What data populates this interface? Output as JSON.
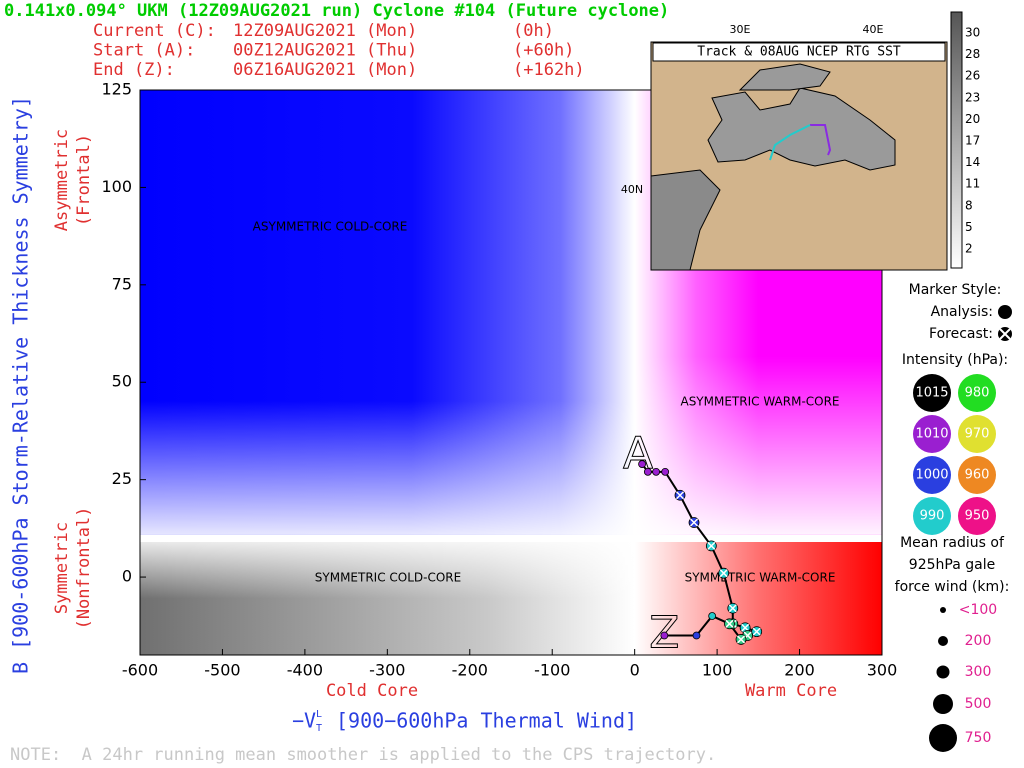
{
  "header": {
    "title": "0.141x0.094° UKM (12Z09AUG2021 run) Cyclone #104 (Future cyclone)",
    "lines": [
      [
        "Current (C):",
        "12Z09AUG2021 (Mon)",
        "(0h)"
      ],
      [
        "Start (A):",
        "00Z12AUG2021 (Thu)",
        "(+60h)"
      ],
      [
        "End (Z):",
        "06Z16AUG2021 (Mon)",
        "(+162h)"
      ]
    ]
  },
  "chart_data": {
    "type": "phase",
    "y_label": "B [900-600hPa Storm-Relative Thickness Symmetry]",
    "y_top_note": [
      "Asymmetric",
      "(Frontal)"
    ],
    "y_bottom_note": [
      "Symmetric",
      "(Nonfrontal)"
    ],
    "x_label_symbol": "−V",
    "x_label_sub": "T",
    "x_label_sup": "L",
    "x_label": "[900−600hPa Thermal Wind]",
    "x_left_note": "Cold Core",
    "x_right_note": "Warm Core",
    "quadrant_labels": [
      "ASYMMETRIC COLD-CORE",
      "ASYMMETRIC WARM-CORE",
      "SYMMETRIC COLD-CORE",
      "SYMMETRIC WARM-CORE"
    ],
    "xlim": [
      -600,
      300
    ],
    "ylim": [
      -20,
      125
    ],
    "xticks": [
      -600,
      -500,
      -400,
      -300,
      -200,
      -100,
      0,
      100,
      200,
      300
    ],
    "yticks": [
      0,
      25,
      50,
      75,
      100,
      125
    ],
    "start_label": "A",
    "end_label": "Z",
    "x": [
      9,
      16,
      26,
      37,
      55,
      72,
      93,
      108,
      119,
      119,
      134,
      148,
      137,
      129,
      115,
      94,
      75,
      36
    ],
    "y": [
      29,
      27,
      27,
      27,
      21,
      14,
      8,
      1,
      -8,
      -12,
      -13,
      -14,
      -15,
      -16,
      -12,
      -10,
      -15,
      -15
    ],
    "colors": [
      "#9a1fd0",
      "#9a1fd0",
      "#9a1fd0",
      "#9a1fd0",
      "#2a3fe0",
      "#2a3fe0",
      "#22cccc",
      "#22cccc",
      "#22cccc",
      "#33cc88",
      "#22cccc",
      "#22cccc",
      "#33cc88",
      "#33cc88",
      "#33cc88",
      "#22cccc",
      "#2a3fe0",
      "#9a1fd0"
    ],
    "forecast": [
      false,
      false,
      false,
      false,
      true,
      true,
      true,
      true,
      true,
      true,
      true,
      true,
      true,
      true,
      true,
      false,
      false,
      false
    ]
  },
  "map": {
    "title": "Track & 08AUG NCEP RTG SST",
    "lon_labels": [
      "30E",
      "40E"
    ],
    "lat_label": "40N",
    "colorbar": [
      30,
      28,
      26,
      23,
      20,
      17,
      14,
      11,
      8,
      5,
      2
    ]
  },
  "legend": {
    "marker_title": "Marker Style:",
    "analysis": "Analysis:",
    "forecast": "Forecast:",
    "intensity_title": "Intensity (hPa):",
    "intensity": [
      {
        "label": 1015,
        "color": "#000000"
      },
      {
        "label": 980,
        "color": "#22dd22"
      },
      {
        "label": 1010,
        "color": "#9a1fd0"
      },
      {
        "label": 970,
        "color": "#e0e030"
      },
      {
        "label": 1000,
        "color": "#2a3fe0"
      },
      {
        "label": 960,
        "color": "#ee8822"
      },
      {
        "label": 990,
        "color": "#22cccc"
      },
      {
        "label": 950,
        "color": "#ee1188"
      }
    ],
    "radius_title": [
      "Mean radius of",
      "925hPa gale",
      "force wind (km):"
    ],
    "radius": [
      "<100",
      "200",
      "300",
      "500",
      "750"
    ]
  },
  "note": "NOTE:  A 24hr running mean smoother is applied to the CPS trajectory."
}
